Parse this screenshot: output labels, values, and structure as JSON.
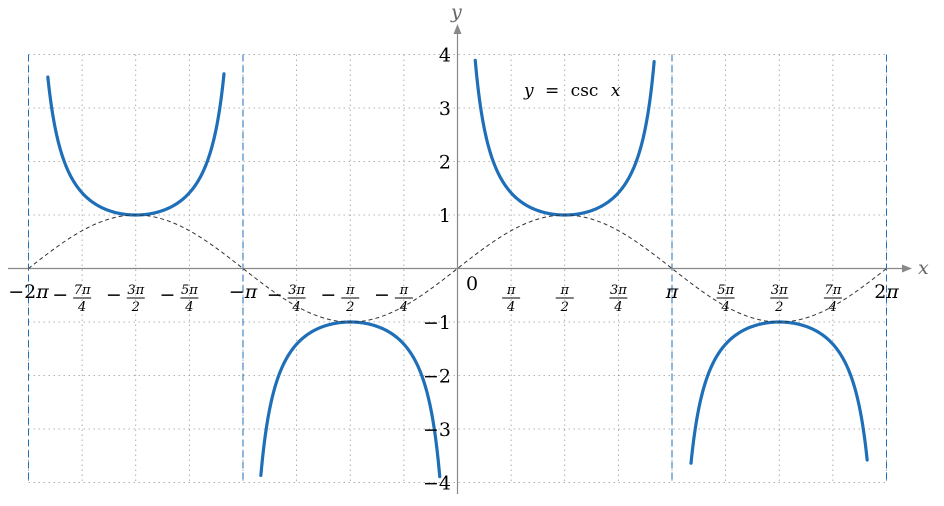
{
  "chart_data": {
    "type": "line",
    "title": "",
    "xlabel": "x",
    "ylabel": "y",
    "xlim": [
      -6.2832,
      6.2832
    ],
    "ylim": [
      -4,
      4
    ],
    "grid": true,
    "function_label": {
      "lhs": "y",
      "eq": "=",
      "fn": "csc",
      "arg": "x"
    },
    "y_ticks": [
      {
        "value": -4,
        "label": "−4"
      },
      {
        "value": -3,
        "label": "−3"
      },
      {
        "value": -2,
        "label": "−2"
      },
      {
        "value": -1,
        "label": "−1"
      },
      {
        "value": 1,
        "label": "1"
      },
      {
        "value": 2,
        "label": "2"
      },
      {
        "value": 3,
        "label": "3"
      },
      {
        "value": 4,
        "label": "4"
      }
    ],
    "origin_label": "0",
    "x_ticks": [
      {
        "value": -6.2832,
        "sign": "−",
        "coef": "2",
        "pi": "π",
        "num": "",
        "den": ""
      },
      {
        "value": -5.4978,
        "sign": "−",
        "coef": "",
        "pi": "",
        "num": "7π",
        "den": "4"
      },
      {
        "value": -4.7124,
        "sign": "−",
        "coef": "",
        "pi": "",
        "num": "3π",
        "den": "2"
      },
      {
        "value": -3.927,
        "sign": "−",
        "coef": "",
        "pi": "",
        "num": "5π",
        "den": "4"
      },
      {
        "value": -3.1416,
        "sign": "−",
        "coef": "",
        "pi": "π",
        "num": "",
        "den": ""
      },
      {
        "value": -2.3562,
        "sign": "−",
        "coef": "",
        "pi": "",
        "num": "3π",
        "den": "4"
      },
      {
        "value": -1.5708,
        "sign": "−",
        "coef": "",
        "pi": "",
        "num": "π",
        "den": "2"
      },
      {
        "value": -0.7854,
        "sign": "−",
        "coef": "",
        "pi": "",
        "num": "π",
        "den": "4"
      },
      {
        "value": 0.7854,
        "sign": "",
        "coef": "",
        "pi": "",
        "num": "π",
        "den": "4"
      },
      {
        "value": 1.5708,
        "sign": "",
        "coef": "",
        "pi": "",
        "num": "π",
        "den": "2"
      },
      {
        "value": 2.3562,
        "sign": "",
        "coef": "",
        "pi": "",
        "num": "3π",
        "den": "4"
      },
      {
        "value": 3.1416,
        "sign": "",
        "coef": "",
        "pi": "π",
        "num": "",
        "den": ""
      },
      {
        "value": 3.927,
        "sign": "",
        "coef": "",
        "pi": "",
        "num": "5π",
        "den": "4"
      },
      {
        "value": 4.7124,
        "sign": "",
        "coef": "",
        "pi": "",
        "num": "3π",
        "den": "2"
      },
      {
        "value": 5.4978,
        "sign": "",
        "coef": "",
        "pi": "",
        "num": "7π",
        "den": "4"
      },
      {
        "value": 6.2832,
        "sign": "",
        "coef": "2",
        "pi": "π",
        "num": "",
        "den": ""
      }
    ],
    "asymptotes": [
      -6.2832,
      -3.1416,
      3.1416,
      6.2832
    ],
    "series": [
      {
        "function": "csc",
        "color": "#1f6fb8",
        "style": "solid",
        "branches": [
          [
            -6.0,
            -3.42
          ],
          [
            -2.88,
            -0.26
          ],
          [
            0.26,
            2.88
          ],
          [
            3.42,
            6.0
          ]
        ]
      },
      {
        "function": "sin",
        "color": "#333333",
        "style": "dashed",
        "branches": [
          [
            -6.2832,
            6.2832
          ]
        ]
      }
    ],
    "colors": {
      "curve": "#1f6fb8",
      "asymptote": "#1f6fb8",
      "grid": "#999999",
      "axis": "#888888"
    }
  }
}
